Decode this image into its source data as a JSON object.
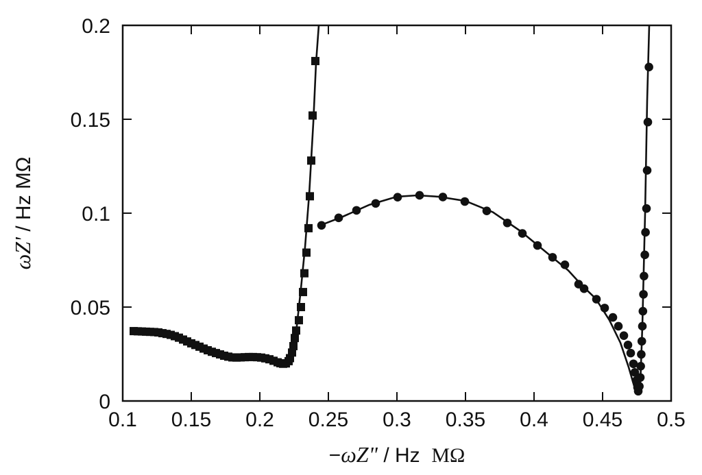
{
  "chart_data": {
    "type": "scatter",
    "title": "",
    "xlabel": {
      "prefix": "−",
      "symbol": "ωZ\"",
      "unit": " / Hz  ",
      "unit2": "MΩ"
    },
    "ylabel": {
      "symbol": "ωZ'",
      "unit": " / Hz MΩ"
    },
    "xlim": [
      0.1,
      0.5
    ],
    "ylim": [
      0,
      0.2
    ],
    "xticks": [
      0.1,
      0.15,
      0.2,
      0.25,
      0.3,
      0.35,
      0.4,
      0.45,
      0.5
    ],
    "xtick_labels": [
      "0.1",
      "0.15",
      "0.2",
      "0.25",
      "0.3",
      "0.35",
      "0.4",
      "0.45",
      "0.5"
    ],
    "yticks": [
      0,
      0.05,
      0.1,
      0.15,
      0.2
    ],
    "ytick_labels": [
      "0",
      "0.05",
      "0.1",
      "0.15",
      "0.2"
    ],
    "grid": false,
    "legend": "none",
    "line_color": "#111111",
    "series": [
      {
        "marker": "square",
        "fit_line": [
          [
            0.108,
            0.0372
          ],
          [
            0.12,
            0.0368
          ],
          [
            0.135,
            0.0352
          ],
          [
            0.15,
            0.0307
          ],
          [
            0.16,
            0.0275
          ],
          [
            0.17,
            0.025
          ],
          [
            0.18,
            0.0232
          ],
          [
            0.19,
            0.0234
          ],
          [
            0.2,
            0.0232
          ],
          [
            0.21,
            0.0212
          ],
          [
            0.217,
            0.0197
          ],
          [
            0.221,
            0.0215
          ],
          [
            0.224,
            0.028
          ],
          [
            0.227,
            0.04
          ],
          [
            0.23,
            0.06
          ],
          [
            0.233,
            0.082
          ],
          [
            0.236,
            0.11
          ],
          [
            0.239,
            0.148
          ],
          [
            0.241,
            0.18
          ],
          [
            0.243,
            0.2
          ]
        ],
        "points": [
          [
            0.108,
            0.0372
          ],
          [
            0.111,
            0.0371
          ],
          [
            0.114,
            0.037
          ],
          [
            0.117,
            0.0369
          ],
          [
            0.12,
            0.0368
          ],
          [
            0.123,
            0.0367
          ],
          [
            0.126,
            0.0365
          ],
          [
            0.129,
            0.0361
          ],
          [
            0.132,
            0.0357
          ],
          [
            0.135,
            0.0352
          ],
          [
            0.138,
            0.0345
          ],
          [
            0.141,
            0.0337
          ],
          [
            0.144,
            0.0327
          ],
          [
            0.147,
            0.0317
          ],
          [
            0.15,
            0.0307
          ],
          [
            0.153,
            0.0298
          ],
          [
            0.156,
            0.0289
          ],
          [
            0.159,
            0.0279
          ],
          [
            0.162,
            0.027
          ],
          [
            0.165,
            0.0262
          ],
          [
            0.168,
            0.0255
          ],
          [
            0.171,
            0.0248
          ],
          [
            0.174,
            0.0241
          ],
          [
            0.177,
            0.0236
          ],
          [
            0.18,
            0.0232
          ],
          [
            0.183,
            0.0231
          ],
          [
            0.186,
            0.0232
          ],
          [
            0.189,
            0.0233
          ],
          [
            0.192,
            0.0234
          ],
          [
            0.195,
            0.0234
          ],
          [
            0.198,
            0.0233
          ],
          [
            0.201,
            0.0231
          ],
          [
            0.204,
            0.0227
          ],
          [
            0.207,
            0.0222
          ],
          [
            0.21,
            0.0214
          ],
          [
            0.213,
            0.0206
          ],
          [
            0.215,
            0.0201
          ],
          [
            0.217,
            0.0198
          ],
          [
            0.219,
            0.02
          ],
          [
            0.221,
            0.0212
          ],
          [
            0.222,
            0.0228
          ],
          [
            0.2235,
            0.0258
          ],
          [
            0.2245,
            0.0292
          ],
          [
            0.2255,
            0.0335
          ],
          [
            0.2265,
            0.0375
          ],
          [
            0.2285,
            0.043
          ],
          [
            0.23,
            0.05
          ],
          [
            0.2315,
            0.058
          ],
          [
            0.2325,
            0.068
          ],
          [
            0.234,
            0.079
          ],
          [
            0.2355,
            0.092
          ],
          [
            0.2365,
            0.109
          ],
          [
            0.2375,
            0.128
          ],
          [
            0.2385,
            0.152
          ],
          [
            0.2405,
            0.181
          ]
        ]
      },
      {
        "marker": "circle",
        "fit_line": [
          [
            0.244,
            0.0935
          ],
          [
            0.26,
            0.098
          ],
          [
            0.28,
            0.1045
          ],
          [
            0.3,
            0.1088
          ],
          [
            0.315,
            0.1095
          ],
          [
            0.33,
            0.1088
          ],
          [
            0.35,
            0.1065
          ],
          [
            0.37,
            0.1005
          ],
          [
            0.39,
            0.0905
          ],
          [
            0.41,
            0.0785
          ],
          [
            0.425,
            0.0695
          ],
          [
            0.435,
            0.0615
          ],
          [
            0.445,
            0.0545
          ],
          [
            0.455,
            0.043
          ],
          [
            0.463,
            0.031
          ],
          [
            0.469,
            0.018
          ],
          [
            0.473,
            0.008
          ],
          [
            0.4755,
            0.005
          ],
          [
            0.4775,
            0.009
          ],
          [
            0.479,
            0.04
          ],
          [
            0.481,
            0.1
          ],
          [
            0.4825,
            0.16
          ],
          [
            0.484,
            0.2
          ]
        ],
        "points": [
          [
            0.245,
            0.0935
          ],
          [
            0.2575,
            0.0975
          ],
          [
            0.2705,
            0.1015
          ],
          [
            0.2845,
            0.1052
          ],
          [
            0.3005,
            0.1085
          ],
          [
            0.3165,
            0.1095
          ],
          [
            0.3335,
            0.1086
          ],
          [
            0.3495,
            0.1062
          ],
          [
            0.3655,
            0.1012
          ],
          [
            0.3805,
            0.0948
          ],
          [
            0.3915,
            0.0892
          ],
          [
            0.4025,
            0.0828
          ],
          [
            0.4135,
            0.0765
          ],
          [
            0.4225,
            0.0725
          ],
          [
            0.4325,
            0.0622
          ],
          [
            0.4365,
            0.0598
          ],
          [
            0.4455,
            0.0542
          ],
          [
            0.4515,
            0.0495
          ],
          [
            0.4575,
            0.0445
          ],
          [
            0.4615,
            0.0398
          ],
          [
            0.4655,
            0.0348
          ],
          [
            0.4685,
            0.0298
          ],
          [
            0.4705,
            0.0255
          ],
          [
            0.4725,
            0.0198
          ],
          [
            0.4735,
            0.0152
          ],
          [
            0.4745,
            0.0108
          ],
          [
            0.4755,
            0.0072
          ],
          [
            0.476,
            0.0052
          ],
          [
            0.4768,
            0.0078
          ],
          [
            0.4775,
            0.0125
          ],
          [
            0.4778,
            0.0185
          ],
          [
            0.4782,
            0.0248
          ],
          [
            0.4786,
            0.0318
          ],
          [
            0.479,
            0.0398
          ],
          [
            0.4794,
            0.0478
          ],
          [
            0.4798,
            0.0568
          ],
          [
            0.4802,
            0.0665
          ],
          [
            0.4808,
            0.0778
          ],
          [
            0.4813,
            0.0898
          ],
          [
            0.482,
            0.1025
          ],
          [
            0.4825,
            0.1228
          ],
          [
            0.483,
            0.1485
          ],
          [
            0.4838,
            0.1778
          ]
        ]
      }
    ]
  }
}
